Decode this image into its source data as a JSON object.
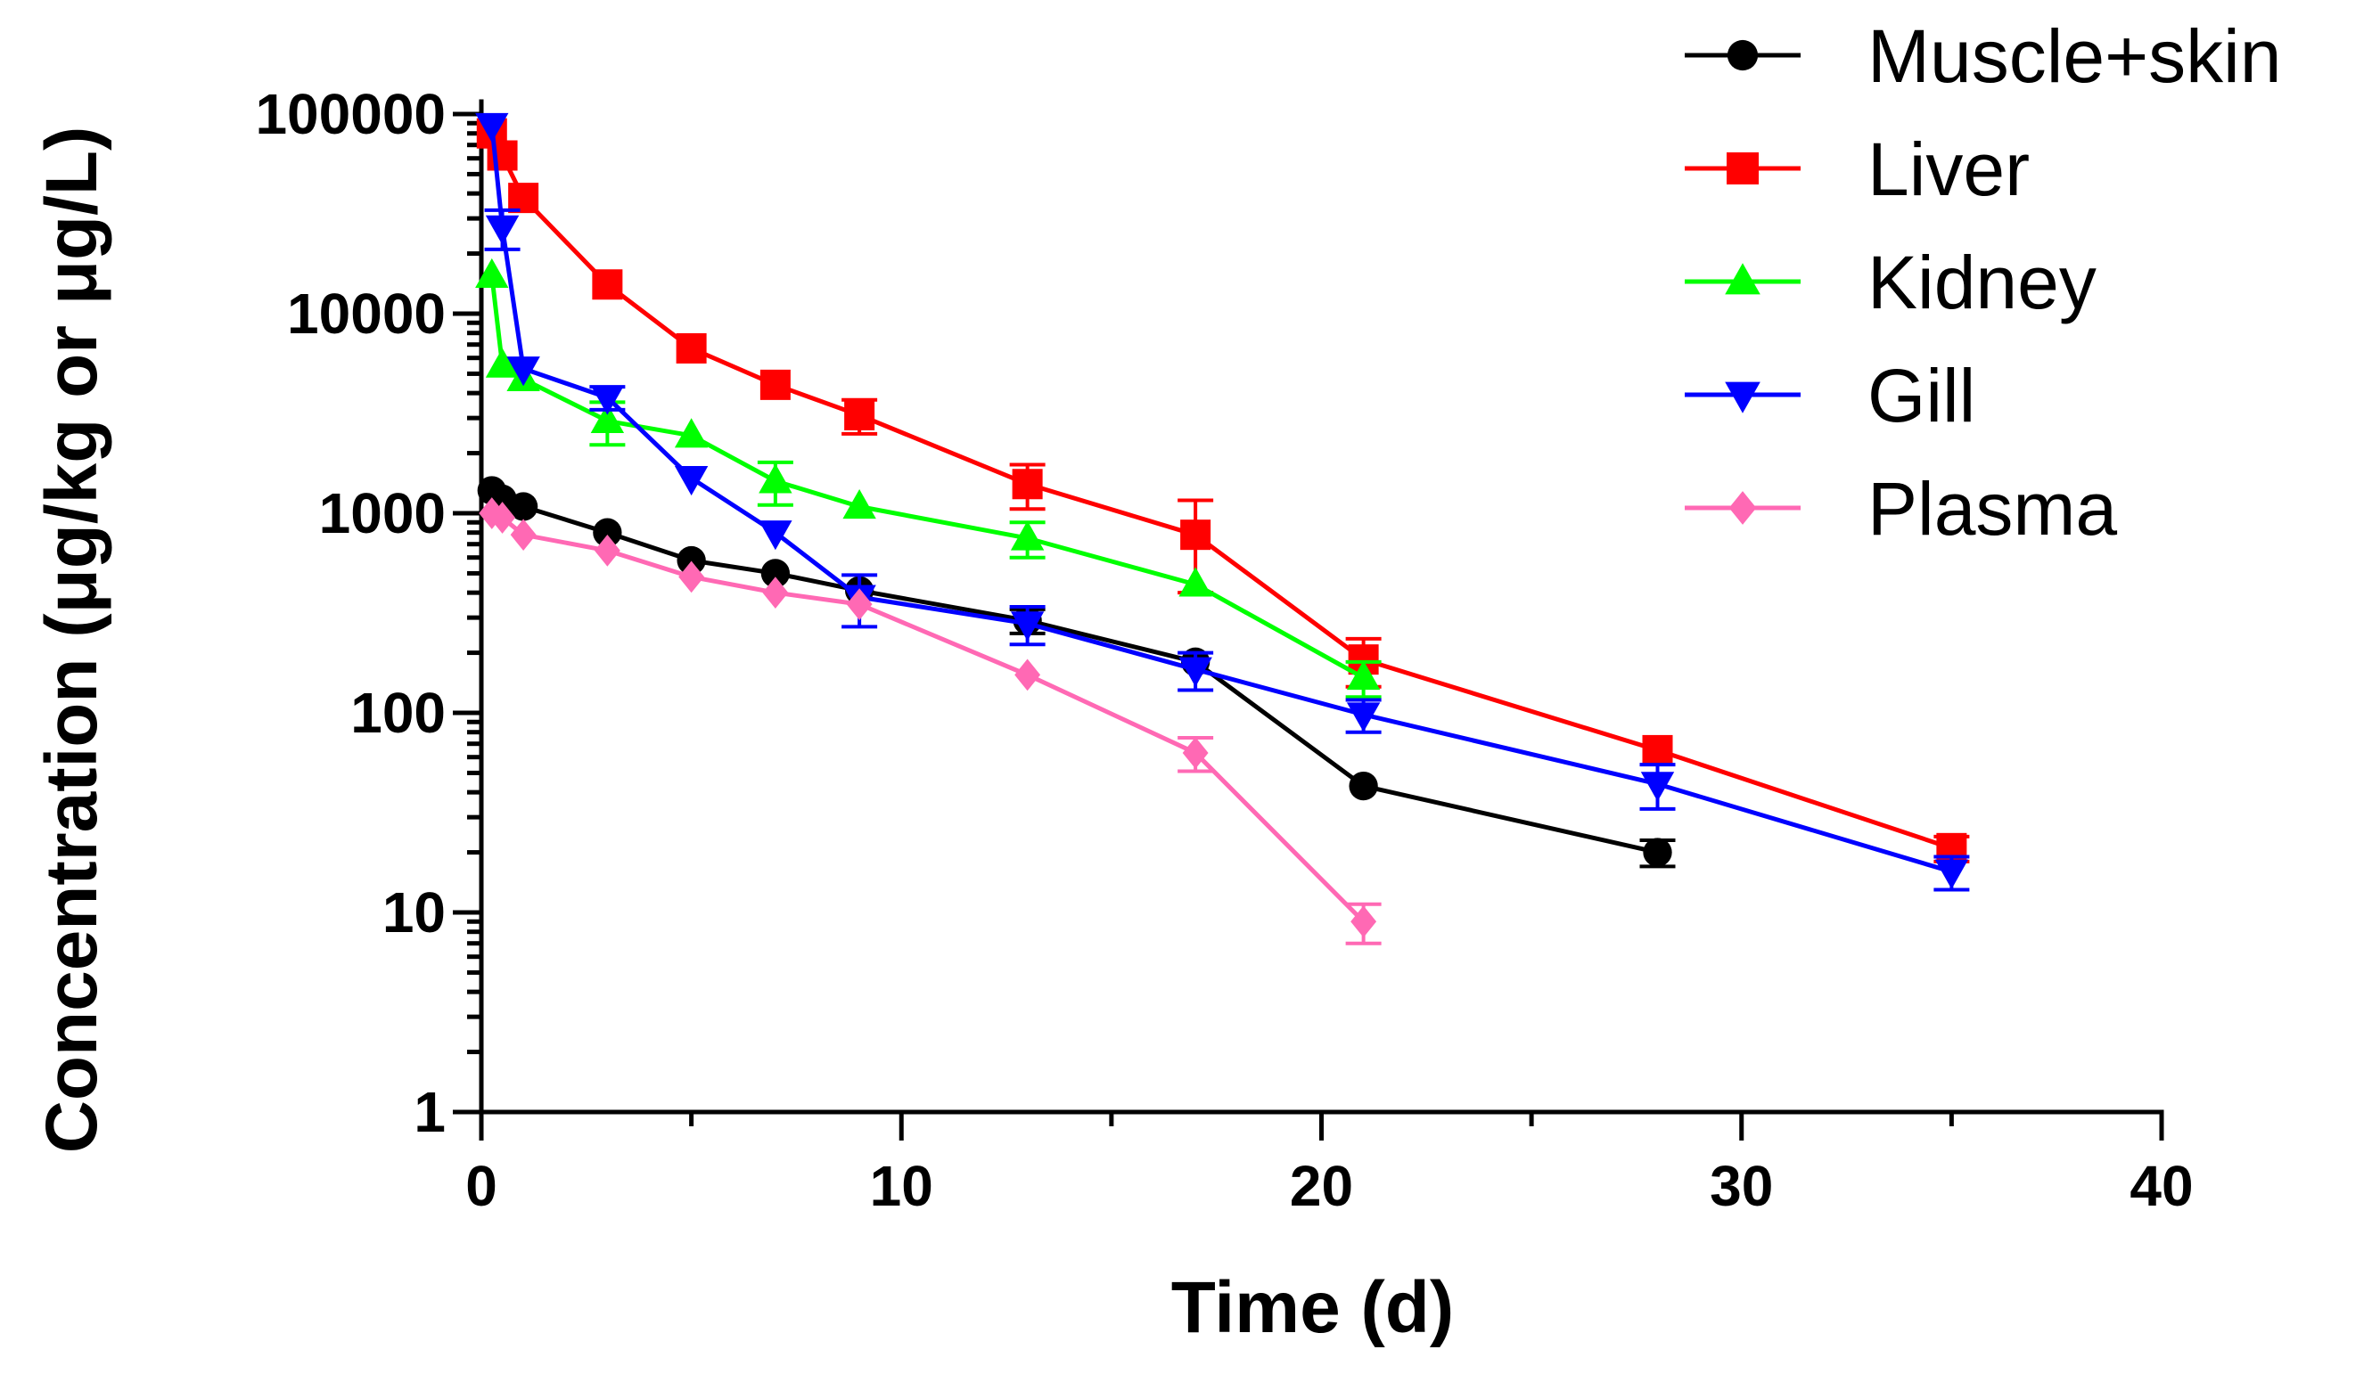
{
  "chart_data": {
    "type": "line",
    "title": "",
    "xlabel": "Time (d)",
    "ylabel": "Concentration (μg/kg or μg/L)",
    "xlim": [
      0,
      40
    ],
    "ylim": [
      1,
      100000
    ],
    "yscale": "log",
    "grid": false,
    "legend_position": "top-right",
    "x_ticks": [
      0,
      10,
      20,
      30,
      40
    ],
    "x_tick_labels": [
      "0",
      "10",
      "20",
      "30",
      "40"
    ],
    "y_ticks": [
      1,
      10,
      100,
      1000,
      10000,
      100000
    ],
    "y_tick_labels": [
      "1",
      "10",
      "100",
      "1000",
      "10000",
      "100000"
    ],
    "series": [
      {
        "name": "Muscle+skin",
        "color": "#000000",
        "marker": "circle",
        "x": [
          0.25,
          0.5,
          1,
          3,
          5,
          7,
          9,
          13,
          17,
          21,
          28
        ],
        "values": [
          1300,
          1180,
          1080,
          800,
          580,
          500,
          410,
          290,
          180,
          43,
          20
        ],
        "err": [
          0,
          0,
          0,
          0,
          0,
          0,
          0,
          40,
          0,
          0,
          3
        ]
      },
      {
        "name": "Liver",
        "color": "#ff0000",
        "marker": "square",
        "x": [
          0.25,
          0.5,
          1,
          3,
          5,
          7,
          9,
          13,
          17,
          21,
          28,
          35
        ],
        "values": [
          80000,
          62000,
          38000,
          14000,
          6700,
          4400,
          3100,
          1400,
          780,
          185,
          65,
          21
        ],
        "err": [
          0,
          0,
          0,
          0,
          0,
          0,
          600,
          350,
          380,
          50,
          0,
          3
        ]
      },
      {
        "name": "Kidney",
        "color": "#00ff00",
        "marker": "triangle-up",
        "x": [
          0.25,
          0.5,
          1,
          3,
          5,
          7,
          9,
          13,
          17,
          21
        ],
        "values": [
          15500,
          5500,
          4700,
          2900,
          2450,
          1450,
          1080,
          750,
          440,
          150
        ],
        "err": [
          0,
          0,
          0,
          700,
          0,
          350,
          0,
          150,
          0,
          30
        ]
      },
      {
        "name": "Gill",
        "color": "#0000ff",
        "marker": "triangle-down",
        "x": [
          0.25,
          0.5,
          1,
          3,
          5,
          7,
          9,
          13,
          17,
          21,
          28,
          35
        ],
        "values": [
          88000,
          27000,
          5300,
          3800,
          1500,
          800,
          380,
          280,
          165,
          98,
          44,
          16
        ],
        "err": [
          0,
          6000,
          0,
          500,
          0,
          0,
          110,
          60,
          35,
          18,
          11,
          3
        ]
      },
      {
        "name": "Plasma",
        "color": "#ff69b4",
        "marker": "diamond",
        "x": [
          0.25,
          0.5,
          1,
          3,
          5,
          7,
          9,
          13,
          17,
          21
        ],
        "values": [
          1000,
          950,
          780,
          650,
          480,
          400,
          350,
          155,
          63,
          9
        ],
        "err": [
          0,
          0,
          0,
          0,
          0,
          0,
          0,
          0,
          12,
          2
        ]
      }
    ]
  }
}
